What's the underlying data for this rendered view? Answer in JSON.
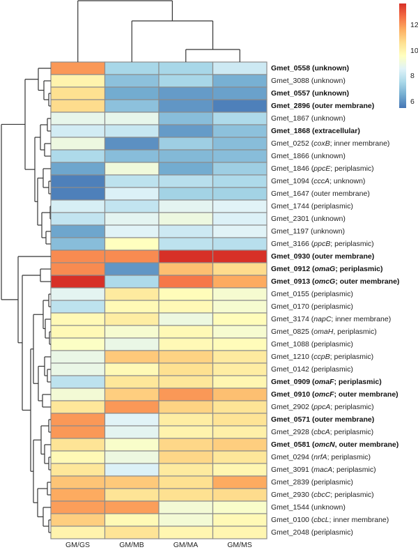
{
  "chart_data": {
    "type": "heatmap",
    "title": "",
    "columns": [
      "GM/GS",
      "GM/MB",
      "GM/MA",
      "GM/MS"
    ],
    "rows": [
      {
        "prefix": "Gmet_0558 (unknown)",
        "gene": "",
        "suffix": "",
        "bold": true
      },
      {
        "prefix": "Gmet_3088 (unknown)",
        "gene": "",
        "suffix": "",
        "bold": false
      },
      {
        "prefix": "Gmet_0557 (unknown)",
        "gene": "",
        "suffix": "",
        "bold": true
      },
      {
        "prefix": "Gmet_2896 (outer membrane)",
        "gene": "",
        "suffix": "",
        "bold": true
      },
      {
        "prefix": "Gmet_1867 (unknown)",
        "gene": "",
        "suffix": "",
        "bold": false
      },
      {
        "prefix": "Gmet_1868 (extracellular)",
        "gene": "",
        "suffix": "",
        "bold": true
      },
      {
        "prefix": "Gmet_0252 (",
        "gene": "coxB",
        "suffix": "; inner membrane)",
        "bold": false
      },
      {
        "prefix": "Gmet_1866 (unknown)",
        "gene": "",
        "suffix": "",
        "bold": false
      },
      {
        "prefix": "Gmet_1846 (",
        "gene": "ppcE",
        "suffix": "; periplasmic)",
        "bold": false
      },
      {
        "prefix": "Gmet_1094 (",
        "gene": "cccA",
        "suffix": "; unknown)",
        "bold": false
      },
      {
        "prefix": "Gmet_1647 (outer membrane)",
        "gene": "",
        "suffix": "",
        "bold": false
      },
      {
        "prefix": "Gmet_1744 (periplasmic)",
        "gene": "",
        "suffix": "",
        "bold": false
      },
      {
        "prefix": "Gmet_2301 (unknown)",
        "gene": "",
        "suffix": "",
        "bold": false
      },
      {
        "prefix": "Gmet_1197 (unknown)",
        "gene": "",
        "suffix": "",
        "bold": false
      },
      {
        "prefix": "Gmet_3166 (",
        "gene": "ppcB",
        "suffix": "; periplasmic)",
        "bold": false
      },
      {
        "prefix": "Gmet_0930 (outer membrane)",
        "gene": "",
        "suffix": "",
        "bold": true
      },
      {
        "prefix": "Gmet_0912 (",
        "gene": "omaG",
        "suffix": "; periplasmic)",
        "bold": true
      },
      {
        "prefix": "Gmet_0913 (",
        "gene": "omcG",
        "suffix": "; outer membrane)",
        "bold": true
      },
      {
        "prefix": "Gmet_0155 (periplasmic)",
        "gene": "",
        "suffix": "",
        "bold": false
      },
      {
        "prefix": "Gmet_0170 (periplasmic)",
        "gene": "",
        "suffix": "",
        "bold": false
      },
      {
        "prefix": "Gmet_3174 (",
        "gene": "napC",
        "suffix": "; inner membrane)",
        "bold": false
      },
      {
        "prefix": "Gmet_0825 (",
        "gene": "omaH",
        "suffix": ", periplasmic)",
        "bold": false
      },
      {
        "prefix": "Gmet_1088 (periplasmic)",
        "gene": "",
        "suffix": "",
        "bold": false
      },
      {
        "prefix": "Gmet_1210 (",
        "gene": "ccpB",
        "suffix": "; periplasmic)",
        "bold": false
      },
      {
        "prefix": "Gmet_0142 (periplasmic)",
        "gene": "",
        "suffix": "",
        "bold": false
      },
      {
        "prefix": "Gmet_0909 (",
        "gene": "omaF",
        "suffix": "; periplasmic)",
        "bold": true
      },
      {
        "prefix": "Gmet_0910 (",
        "gene": "omcF",
        "suffix": "; outer membrane)",
        "bold": true
      },
      {
        "prefix": "Gmet_2902 (",
        "gene": "ppcA",
        "suffix": "; periplasmic)",
        "bold": false
      },
      {
        "prefix": "Gmet_0571 (outer membrane)",
        "gene": "",
        "suffix": "",
        "bold": true
      },
      {
        "prefix": "Gmet_2928 (",
        "gene": "cbcA",
        "suffix": "; periplasmic)",
        "bold": false
      },
      {
        "prefix": "Gmet_0581 (",
        "gene": "omcN",
        "suffix": ", outer membrane)",
        "bold": true
      },
      {
        "prefix": "Gmet_0294 (",
        "gene": "nrfA",
        "suffix": "; periplasmic)",
        "bold": false
      },
      {
        "prefix": "Gmet_3091 (",
        "gene": "macA",
        "suffix": "; periplasmic)",
        "bold": false
      },
      {
        "prefix": "Gmet_2839 (periplasmic)",
        "gene": "",
        "suffix": "",
        "bold": false
      },
      {
        "prefix": "Gmet_2930 (",
        "gene": "cbcC",
        "suffix": "; periplasmic)",
        "bold": false
      },
      {
        "prefix": "Gmet_1544 (unknown)",
        "gene": "",
        "suffix": "",
        "bold": false
      },
      {
        "prefix": "Gmet_0100 (",
        "gene": "cbcL",
        "suffix": "; inner membrane)",
        "bold": false
      },
      {
        "prefix": "Gmet_2048 (periplasmic)",
        "gene": "",
        "suffix": "",
        "bold": false
      }
    ],
    "values": [
      [
        12.0,
        7.5,
        7.5,
        8.2
      ],
      [
        10.0,
        7.0,
        7.5,
        6.6
      ],
      [
        10.6,
        6.5,
        6.2,
        6.3
      ],
      [
        10.7,
        7.0,
        6.1,
        5.7
      ],
      [
        8.8,
        8.8,
        6.9,
        7.6
      ],
      [
        8.3,
        8.1,
        6.2,
        7.0
      ],
      [
        9.0,
        6.0,
        7.3,
        6.9
      ],
      [
        7.6,
        6.9,
        6.8,
        6.9
      ],
      [
        6.4,
        9.1,
        6.5,
        7.3
      ],
      [
        5.7,
        7.9,
        7.8,
        7.6
      ],
      [
        5.7,
        8.5,
        7.4,
        7.4
      ],
      [
        8.4,
        8.0,
        8.7,
        8.6
      ],
      [
        8.0,
        8.7,
        9.0,
        8.5
      ],
      [
        6.4,
        8.6,
        8.2,
        8.6
      ],
      [
        6.9,
        9.6,
        7.9,
        7.8
      ],
      [
        12.2,
        12.2,
        13.7,
        13.7
      ],
      [
        12.2,
        6.1,
        11.3,
        10.7
      ],
      [
        13.7,
        7.6,
        12.5,
        11.7
      ],
      [
        8.7,
        10.3,
        9.7,
        9.3
      ],
      [
        7.9,
        9.8,
        9.8,
        9.3
      ],
      [
        9.8,
        10.2,
        9.0,
        9.7
      ],
      [
        9.8,
        9.3,
        9.8,
        9.3
      ],
      [
        9.5,
        8.9,
        9.8,
        9.7
      ],
      [
        8.9,
        11.1,
        10.9,
        10.3
      ],
      [
        8.9,
        9.8,
        10.6,
        10.2
      ],
      [
        7.9,
        10.4,
        10.4,
        9.9
      ],
      [
        9.2,
        11.0,
        12.0,
        11.3
      ],
      [
        10.4,
        12.0,
        10.9,
        10.5
      ],
      [
        12.0,
        8.6,
        10.2,
        10.5
      ],
      [
        12.0,
        8.7,
        10.0,
        10.1
      ],
      [
        10.5,
        9.4,
        10.8,
        11.0
      ],
      [
        9.8,
        9.0,
        10.8,
        10.4
      ],
      [
        10.4,
        8.5,
        10.3,
        9.9
      ],
      [
        11.2,
        11.1,
        10.6,
        11.7
      ],
      [
        11.7,
        10.5,
        10.6,
        10.7
      ],
      [
        11.9,
        11.9,
        9.2,
        9.4
      ],
      [
        11.0,
        9.8,
        9.2,
        9.8
      ],
      [
        10.0,
        10.5,
        9.9,
        9.9
      ]
    ],
    "colorbar": {
      "range": [
        5.5,
        13.7
      ],
      "ticks": [
        6,
        8,
        10,
        12
      ],
      "tick_labels": [
        "6",
        "8",
        "10",
        "12"
      ],
      "colormap": [
        "#4575b4",
        "#74add1",
        "#abd9e9",
        "#e0f3f8",
        "#ffffbf",
        "#fee090",
        "#fdae61",
        "#f46d43",
        "#d73027"
      ],
      "placement": "top-right"
    },
    "row_dendrogram": true,
    "column_dendrogram": true,
    "cell_border_color": "#8c8c8c"
  }
}
